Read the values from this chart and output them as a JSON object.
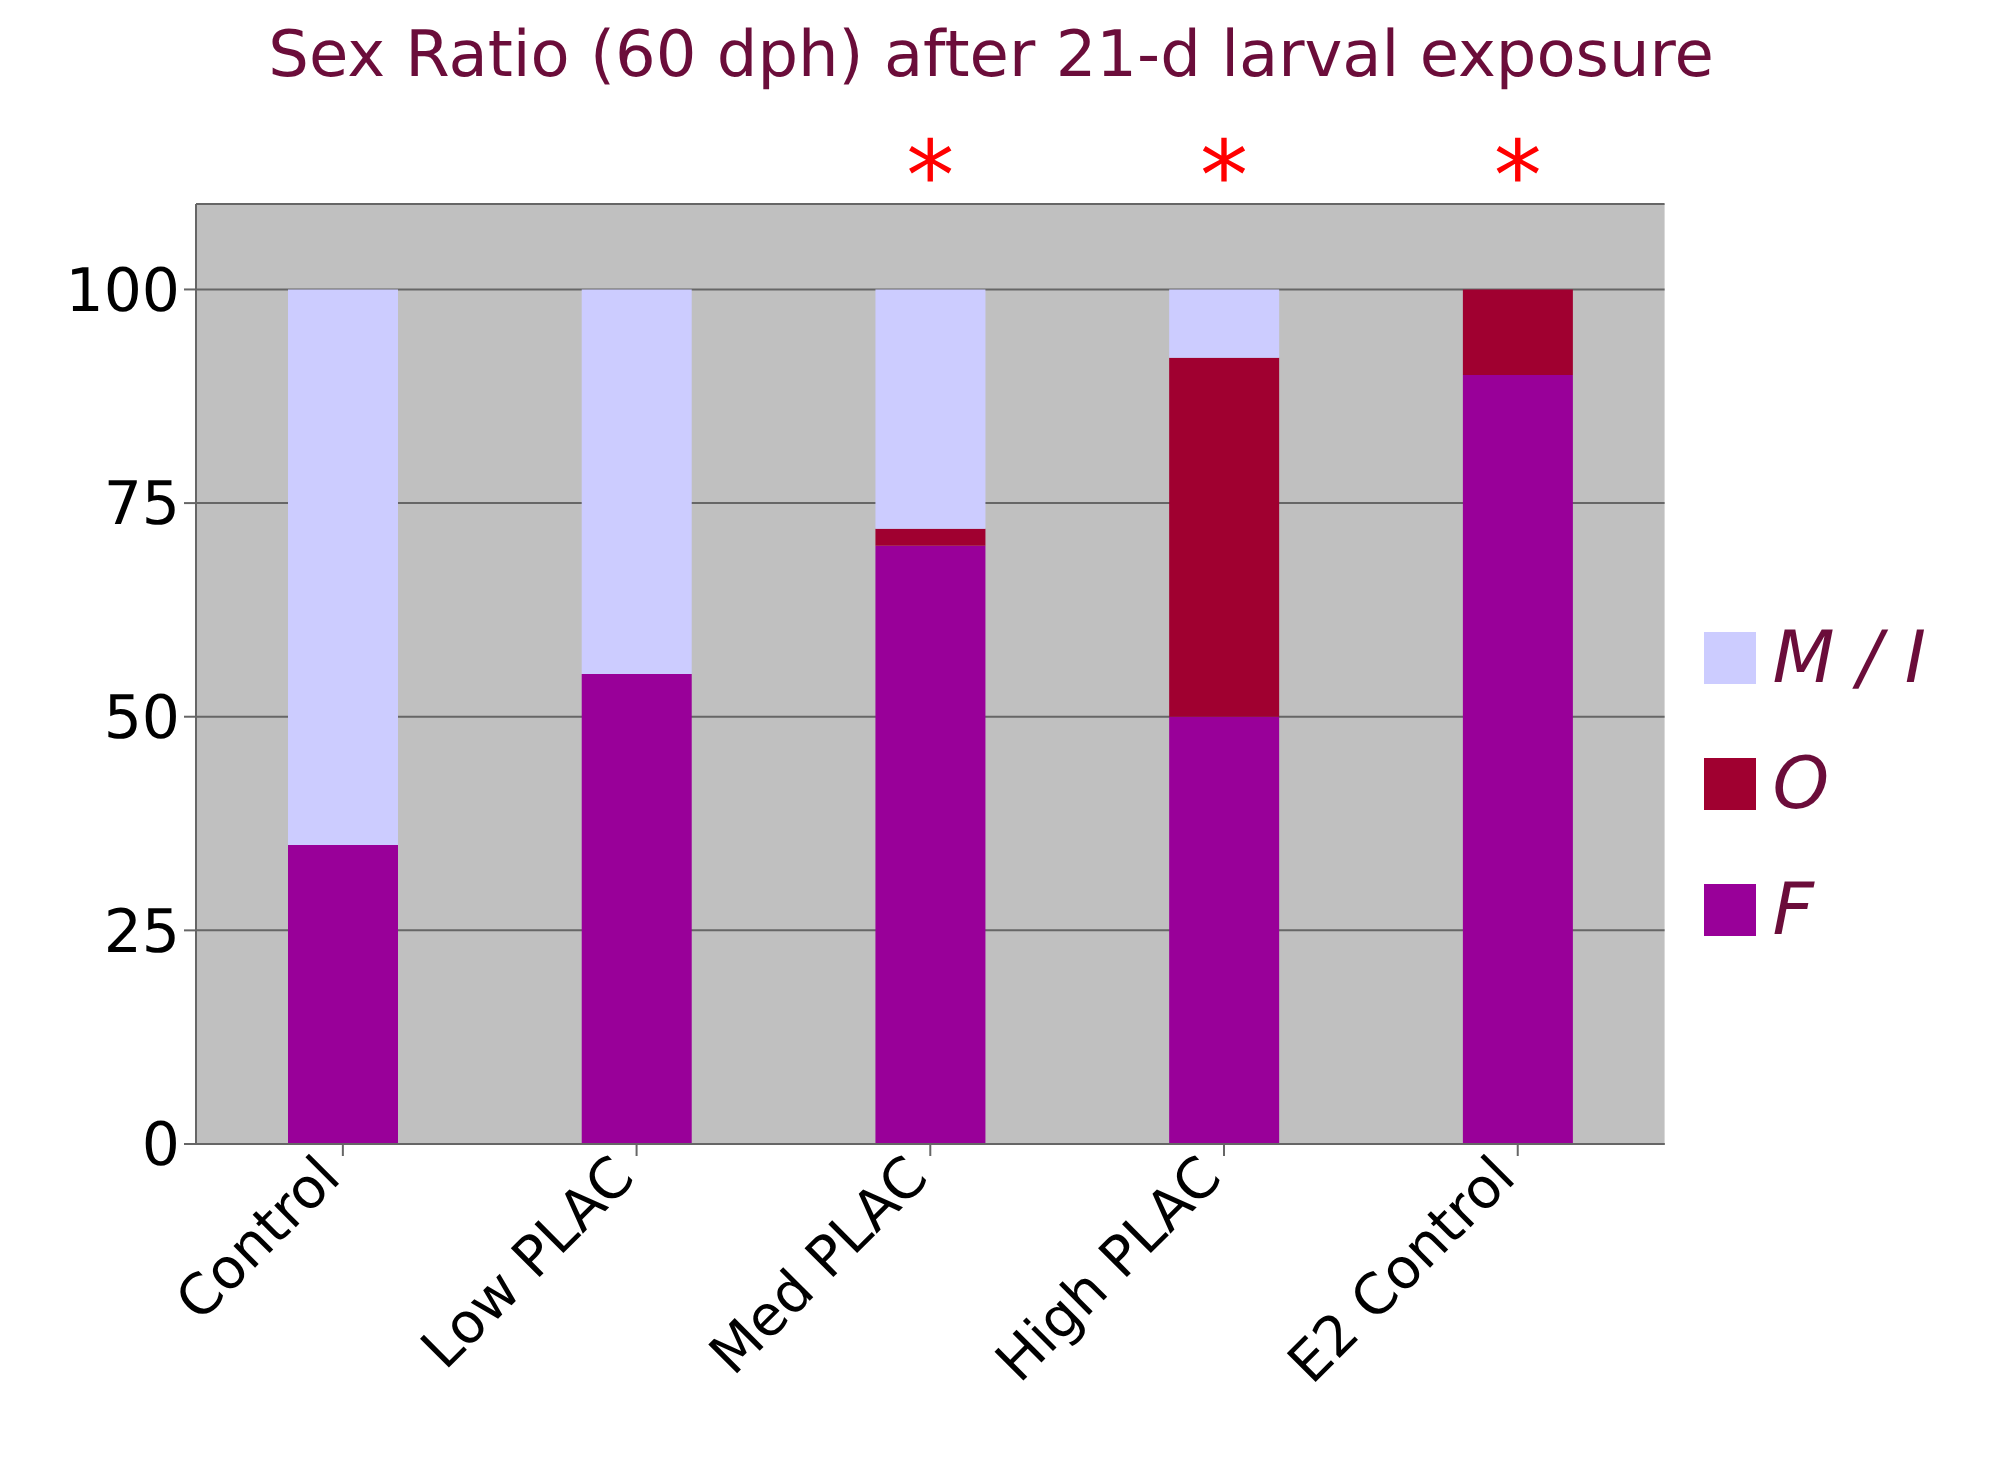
{
  "chart_data": {
    "type": "bar",
    "title": "Sex Ratio (60 dph) after 21-d larval exposure",
    "categories": [
      "Control",
      "Low PLAC",
      "Med PLAC",
      "High PLAC",
      "E2 Control"
    ],
    "stacked": true,
    "series": [
      {
        "name": "F",
        "color": "#990099",
        "values": [
          35,
          55,
          70,
          50,
          90
        ]
      },
      {
        "name": "O",
        "color": "#a00030",
        "values": [
          0,
          0,
          2,
          42,
          10
        ]
      },
      {
        "name": "M / I",
        "color": "#ccccff",
        "values": [
          65,
          45,
          28,
          8,
          0
        ]
      }
    ],
    "ylim": [
      0,
      110
    ],
    "yticks": [
      0,
      25,
      50,
      75,
      100
    ],
    "grid": "y",
    "legend": "right",
    "annotations": [
      {
        "text": "*",
        "x": "Med PLAC",
        "y": 100
      },
      {
        "text": "*",
        "x": "High PLAC",
        "y": 100
      },
      {
        "text": "*",
        "x": "E2 Control",
        "y": 100
      }
    ]
  }
}
